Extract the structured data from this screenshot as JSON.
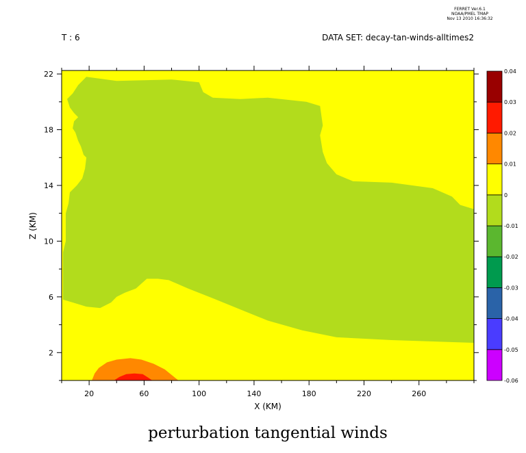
{
  "header": {
    "ferret_line1": "FERRET Ver.6.1",
    "ferret_line2": "NOAA/PMEL TMAP",
    "ferret_line3": "Nov 13 2010 16:36:32",
    "time_label": "T : 6",
    "dataset_label": "DATA SET: decay-tan-winds-alltimes2"
  },
  "colors": {
    "level_fills": [
      "#cc00ff",
      "#4a3cff",
      "#2a63a8",
      "#009a4e",
      "#5bb72f",
      "#b2dc1c",
      "#ffff00",
      "#ff8800",
      "#ff1a00",
      "#990000"
    ]
  },
  "chart_data": {
    "type": "contour",
    "title": "perturbation tangential winds",
    "xlabel": "X (KM)",
    "ylabel": "Z (KM)",
    "xlim": [
      0,
      300
    ],
    "ylim": [
      0,
      22.25
    ],
    "x_ticks": [
      20,
      60,
      100,
      140,
      180,
      220,
      260
    ],
    "y_ticks": [
      2,
      6,
      10,
      14,
      18,
      22
    ],
    "colorbar": {
      "levels": [
        -0.06,
        -0.05,
        -0.04,
        -0.03,
        -0.02,
        -0.01,
        0,
        0.01,
        0.02,
        0.03,
        0.04
      ],
      "labels": [
        "-0.06",
        "-0.05",
        "-0.04",
        "-0.03",
        "-0.02",
        "-0.01",
        "0",
        "0.01",
        "0.02",
        "0.03",
        "0.04"
      ]
    },
    "regions": [
      {
        "name": "band-(-0.01,0)",
        "polygon": [
          [
            1,
            1.8
          ],
          [
            1,
            5.8
          ],
          [
            8,
            5.6
          ],
          [
            18,
            5.3
          ],
          [
            28,
            5.2
          ],
          [
            36,
            5.6
          ],
          [
            40,
            6.0
          ],
          [
            46,
            6.3
          ],
          [
            54,
            6.6
          ],
          [
            62,
            7.3
          ],
          [
            70,
            7.3
          ],
          [
            78,
            7.2
          ],
          [
            92,
            6.6
          ],
          [
            110,
            5.9
          ],
          [
            130,
            5.1
          ],
          [
            150,
            4.3
          ],
          [
            175,
            3.6
          ],
          [
            200,
            3.1
          ],
          [
            240,
            2.9
          ],
          [
            300,
            2.7
          ],
          [
            300,
            12.3
          ],
          [
            290,
            12.6
          ],
          [
            284,
            13.2
          ],
          [
            270,
            13.8
          ],
          [
            240,
            14.2
          ],
          [
            212,
            14.3
          ],
          [
            200,
            14.8
          ],
          [
            193,
            15.6
          ],
          [
            190,
            16.4
          ],
          [
            188,
            17.6
          ],
          [
            190,
            18.3
          ],
          [
            188,
            19.7
          ],
          [
            178,
            20.0
          ],
          [
            150,
            20.3
          ],
          [
            130,
            20.2
          ],
          [
            110,
            20.3
          ],
          [
            103,
            20.7
          ],
          [
            100,
            21.4
          ],
          [
            80,
            21.6
          ],
          [
            40,
            21.5
          ],
          [
            18,
            21.8
          ],
          [
            12,
            21.2
          ],
          [
            8,
            20.6
          ],
          [
            4,
            20.2
          ],
          [
            6,
            19.6
          ],
          [
            9,
            19.2
          ],
          [
            12,
            18.9
          ],
          [
            9,
            18.6
          ],
          [
            8,
            18.1
          ],
          [
            10,
            17.8
          ],
          [
            12,
            17.2
          ],
          [
            14,
            16.8
          ],
          [
            16,
            16.2
          ],
          [
            18,
            16.0
          ],
          [
            17,
            15.2
          ],
          [
            15,
            14.5
          ],
          [
            11,
            14.0
          ],
          [
            6,
            13.5
          ],
          [
            5,
            12.7
          ],
          [
            3,
            12.0
          ],
          [
            3,
            10.0
          ],
          [
            1,
            9.2
          ]
        ]
      },
      {
        "name": "band-(0.01,0.02)",
        "polygon": [
          [
            22,
            0
          ],
          [
            24,
            0.5
          ],
          [
            27,
            0.9
          ],
          [
            33,
            1.3
          ],
          [
            40,
            1.5
          ],
          [
            50,
            1.6
          ],
          [
            58,
            1.5
          ],
          [
            67,
            1.2
          ],
          [
            75,
            0.8
          ],
          [
            80,
            0.4
          ],
          [
            85,
            0
          ]
        ]
      },
      {
        "name": "band-(0.02,0.03)",
        "polygon": [
          [
            38,
            0
          ],
          [
            42,
            0.25
          ],
          [
            47,
            0.45
          ],
          [
            53,
            0.5
          ],
          [
            59,
            0.45
          ],
          [
            63,
            0.2
          ],
          [
            66,
            0
          ]
        ]
      }
    ]
  }
}
